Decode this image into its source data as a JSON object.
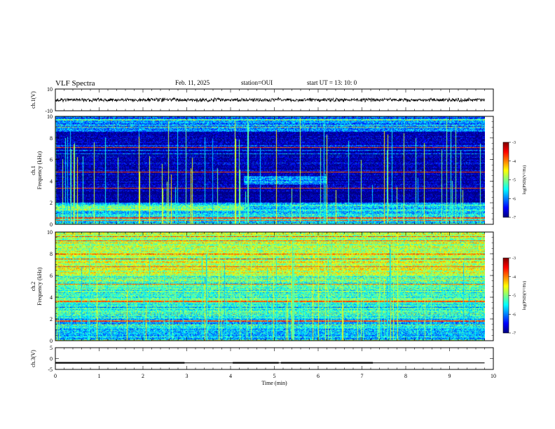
{
  "header": {
    "title": "VLF Spectra",
    "date": "Feb. 11, 2025",
    "station": "station=OUI",
    "start_ut": "start  UT =  13: 10: 0"
  },
  "chart_data": [
    {
      "type": "line",
      "panel": "ch1-waveform",
      "ylabel": "ch.1(V)",
      "ylim": [
        -10,
        10
      ],
      "ytick_labels": [
        "10",
        "-10"
      ],
      "xlim": [
        0,
        10
      ],
      "trace_level": 0,
      "trace_amplitude": 1.5,
      "data_end_min": 9.8,
      "color": "#000000"
    },
    {
      "type": "heatmap",
      "panel": "ch1-spectrogram",
      "ylabel": "ch.1\nFrequency  (kHz)",
      "ylim": [
        0,
        10
      ],
      "ytick_labels": [
        "0",
        "2",
        "4",
        "6",
        "8",
        "10"
      ],
      "xlim": [
        0,
        10
      ],
      "data_end_min": 9.8,
      "colorbar": {
        "label": "log(PSD)(V²/Hz)",
        "range": [
          -7,
          -3
        ],
        "tick_labels": [
          "-7",
          "-6",
          "-5",
          "-4",
          "-3"
        ]
      },
      "strong_lines_khz": [
        7.1,
        4.85,
        3.35,
        0.6,
        0.35
      ],
      "bands": [
        {
          "f0": 0,
          "f1": 2,
          "t0": 0,
          "t1": 9.8,
          "level": -5.6
        },
        {
          "f0": 1.3,
          "f1": 1.7,
          "t0": 0,
          "t1": 4.3,
          "level": -4.9
        },
        {
          "f0": 3.7,
          "f1": 4.5,
          "t0": 4.3,
          "t1": 6.2,
          "level": -5.9
        },
        {
          "f0": 8.6,
          "f1": 10,
          "t0": 0,
          "t1": 9.8,
          "level": -6.1
        }
      ],
      "background_level": -6.9
    },
    {
      "type": "heatmap",
      "panel": "ch2-spectrogram",
      "ylabel": "ch.2\nFrequency  (kHz)",
      "ylim": [
        0,
        10
      ],
      "ytick_labels": [
        "0",
        "2",
        "4",
        "6",
        "8",
        "10"
      ],
      "xlim": [
        0,
        10
      ],
      "data_end_min": 9.8,
      "colorbar": {
        "label": "log(PSD)(V²/Hz)",
        "range": [
          -7,
          -3
        ],
        "tick_labels": [
          "-7",
          "-6",
          "-5",
          "-4",
          "-3"
        ]
      },
      "strong_lines_khz": [
        9.2,
        6.8,
        5.2,
        3.6,
        1.8
      ],
      "bands": [
        {
          "f0": 6.0,
          "f1": 10,
          "t0": 0,
          "t1": 9.8,
          "level": -4.8
        },
        {
          "f0": 2.0,
          "f1": 6.0,
          "t0": 0,
          "t1": 9.8,
          "level": -5.3
        },
        {
          "f0": 0,
          "f1": 2.0,
          "t0": 0,
          "t1": 9.8,
          "level": -5.7
        }
      ],
      "background_level": -5.8
    },
    {
      "type": "line",
      "panel": "ch3-waveform",
      "ylabel": "ch.3(V)",
      "ylim": [
        -5,
        5
      ],
      "ytick_labels": [
        "5",
        "0",
        "-5"
      ],
      "xlabel": "Time  (min)",
      "xlim": [
        0,
        10
      ],
      "xtick_labels": [
        "0",
        "1",
        "2",
        "3",
        "4",
        "5",
        "6",
        "7",
        "8",
        "9",
        "10"
      ],
      "baseline_v": -2,
      "high_v": -1.6,
      "high_segments": [
        [
          0,
          2.95
        ],
        [
          4.05,
          5.1
        ],
        [
          5.15,
          7.25
        ]
      ],
      "data_end_min": 9.8,
      "color": "#000000"
    }
  ],
  "colors": {
    "colormap": [
      "#00007f",
      "#0000ff",
      "#0080ff",
      "#00ffff",
      "#80ff80",
      "#ffff00",
      "#ff8000",
      "#ff0000",
      "#7f0000"
    ],
    "axis": "#000000"
  }
}
